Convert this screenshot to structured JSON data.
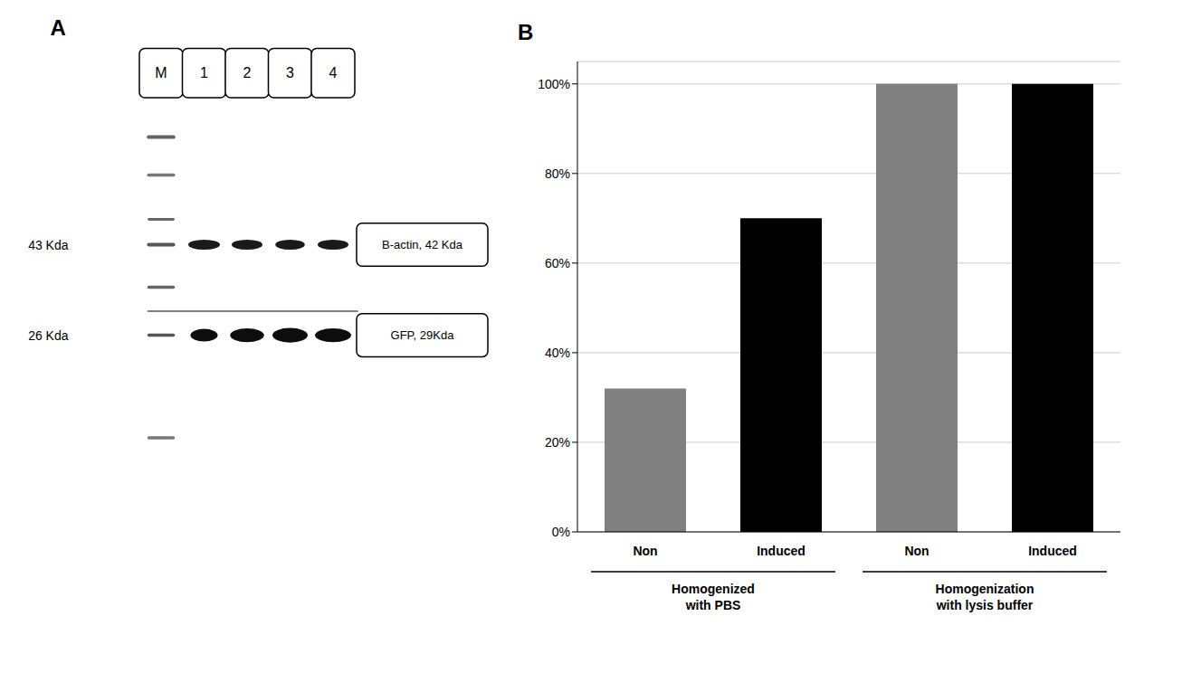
{
  "chart_data": [
    {
      "type": "western_blot",
      "title": "A",
      "categories": [
        "M",
        "1",
        "2",
        "3",
        "4"
      ],
      "rows": [
        {
          "label": "43 Kda",
          "annotation": "B-actin, 42 Kda"
        },
        {
          "label": "26 Kda",
          "annotation": "GFP, 29Kda"
        }
      ]
    },
    {
      "type": "bar",
      "title": "B",
      "categories": [
        "Non",
        "Induced",
        "Non",
        "Induced"
      ],
      "values": [
        32,
        70,
        100,
        100
      ],
      "colors": [
        "#808080",
        "#000000",
        "#808080",
        "#000000"
      ],
      "group_labels": [
        "Homogenized\nwith PBS",
        "Homogenization\nwith lysis buffer"
      ],
      "ylim": [
        0,
        105
      ],
      "yticks": [
        {
          "value": 0,
          "label": "0%"
        },
        {
          "value": 20,
          "label": "20%"
        },
        {
          "value": 40,
          "label": "40%"
        },
        {
          "value": 60,
          "label": "60%"
        },
        {
          "value": 80,
          "label": "80%"
        },
        {
          "value": 100,
          "label": "100%"
        }
      ],
      "grid": true
    }
  ]
}
